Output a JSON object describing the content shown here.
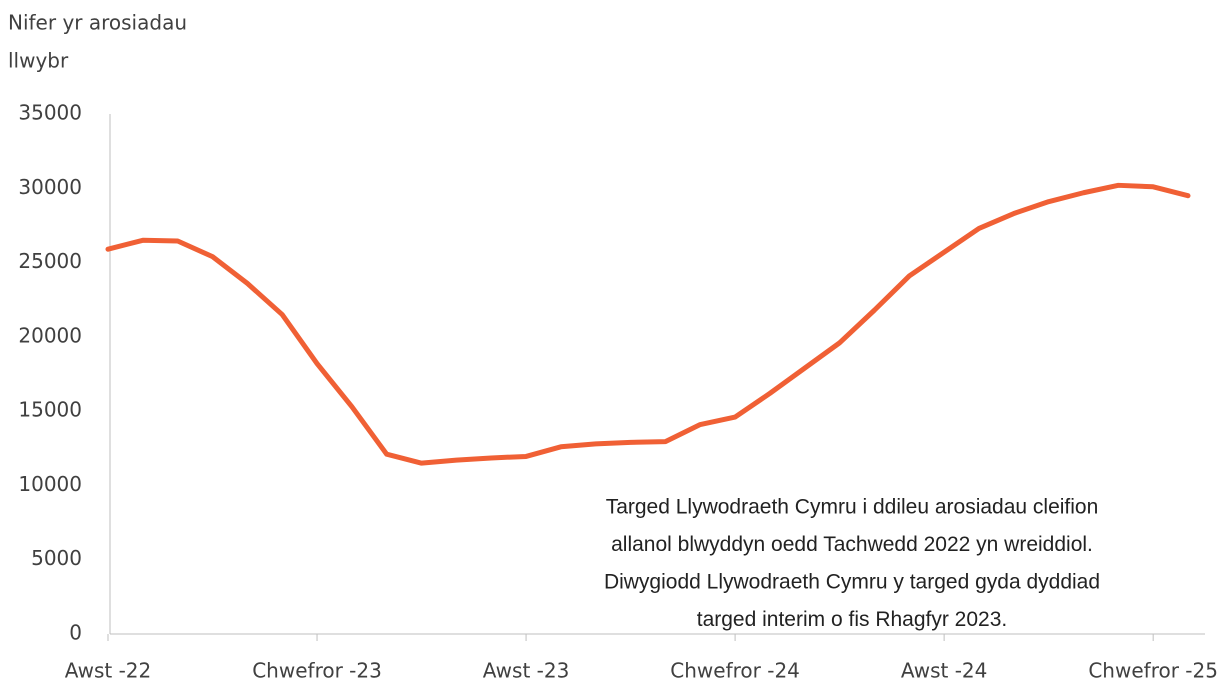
{
  "chart_data": {
    "type": "line",
    "y_label": [
      "Nifer yr arosiadau",
      "llwybr"
    ],
    "annotation": [
      "Targed Llywodraeth Cymru i ddileu arosiadau cleifion",
      "allanol blwyddyn oedd Tachwedd 2022 yn wreiddiol.",
      "Diwygiodd Llywodraeth Cymru y targed gyda dyddiad",
      "targed interim o fis Rhagfyr 2023."
    ],
    "categories": [
      "Awst -22",
      null,
      null,
      null,
      null,
      null,
      "Chwefror -23",
      null,
      null,
      null,
      null,
      null,
      "Awst -23",
      null,
      null,
      null,
      null,
      null,
      "Chwefror -24",
      null,
      null,
      null,
      null,
      null,
      "Awst -24",
      null,
      null,
      null,
      null,
      null,
      "Chwefror -25",
      null
    ],
    "series": [
      {
        "color": "#f06035",
        "values": [
          25900,
          26500,
          26450,
          25400,
          23600,
          21500,
          18200,
          15300,
          12100,
          11500,
          11700,
          11850,
          11950,
          12600,
          12800,
          12900,
          12950,
          14100,
          14600,
          16200,
          17900,
          19600,
          21800,
          24100,
          25700,
          27300,
          28300,
          29100,
          29700,
          30200,
          30100,
          29500
        ]
      }
    ],
    "ylim": [
      0,
      35000
    ],
    "yticks": [
      0,
      5000,
      10000,
      15000,
      20000,
      25000,
      30000,
      35000
    ],
    "grid": false
  }
}
